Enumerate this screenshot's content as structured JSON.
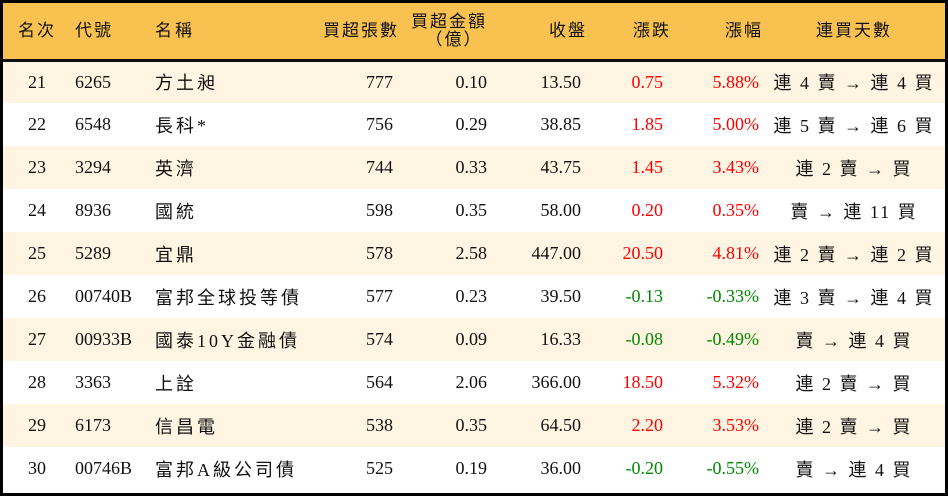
{
  "colors": {
    "header_bg": "#f8c150",
    "row_odd_bg": "#fff5e2",
    "row_even_bg": "#ffffff",
    "up": "#ff0000",
    "down": "#008a00"
  },
  "headers": {
    "rank": "名次",
    "code": "代號",
    "name": "名稱",
    "lots": "買超張數",
    "amount_line1": "買超金額",
    "amount_line2": "（億）",
    "close": "收盤",
    "change": "漲跌",
    "pct": "漲幅",
    "streak": "連買天數"
  },
  "rows": [
    {
      "rank": "21",
      "code": "6265",
      "name": "方土昶",
      "lots": "777",
      "amount": "0.10",
      "close": "13.50",
      "change": "0.75",
      "pct": "5.88%",
      "dir": "up",
      "streak": "連 4 賣 → 連 4 買"
    },
    {
      "rank": "22",
      "code": "6548",
      "name": "長科*",
      "lots": "756",
      "amount": "0.29",
      "close": "38.85",
      "change": "1.85",
      "pct": "5.00%",
      "dir": "up",
      "streak": "連 5 賣 → 連 6 買"
    },
    {
      "rank": "23",
      "code": "3294",
      "name": "英濟",
      "lots": "744",
      "amount": "0.33",
      "close": "43.75",
      "change": "1.45",
      "pct": "3.43%",
      "dir": "up",
      "streak": "連 2 賣 → 買"
    },
    {
      "rank": "24",
      "code": "8936",
      "name": "國統",
      "lots": "598",
      "amount": "0.35",
      "close": "58.00",
      "change": "0.20",
      "pct": "0.35%",
      "dir": "up",
      "streak": "賣 → 連 11 買"
    },
    {
      "rank": "25",
      "code": "5289",
      "name": "宜鼎",
      "lots": "578",
      "amount": "2.58",
      "close": "447.00",
      "change": "20.50",
      "pct": "4.81%",
      "dir": "up",
      "streak": "連 2 賣 → 連 2 買"
    },
    {
      "rank": "26",
      "code": "00740B",
      "name": "富邦全球投等債",
      "lots": "577",
      "amount": "0.23",
      "close": "39.50",
      "change": "-0.13",
      "pct": "-0.33%",
      "dir": "down",
      "streak": "連 3 賣 → 連 4 買"
    },
    {
      "rank": "27",
      "code": "00933B",
      "name": "國泰10Y金融債",
      "lots": "574",
      "amount": "0.09",
      "close": "16.33",
      "change": "-0.08",
      "pct": "-0.49%",
      "dir": "down",
      "streak": "賣 → 連 4 買"
    },
    {
      "rank": "28",
      "code": "3363",
      "name": "上詮",
      "lots": "564",
      "amount": "2.06",
      "close": "366.00",
      "change": "18.50",
      "pct": "5.32%",
      "dir": "up",
      "streak": "連 2 賣 → 買"
    },
    {
      "rank": "29",
      "code": "6173",
      "name": "信昌電",
      "lots": "538",
      "amount": "0.35",
      "close": "64.50",
      "change": "2.20",
      "pct": "3.53%",
      "dir": "up",
      "streak": "連 2 賣 → 買"
    },
    {
      "rank": "30",
      "code": "00746B",
      "name": "富邦A級公司債",
      "lots": "525",
      "amount": "0.19",
      "close": "36.00",
      "change": "-0.20",
      "pct": "-0.55%",
      "dir": "down",
      "streak": "賣 → 連 4 買"
    }
  ]
}
